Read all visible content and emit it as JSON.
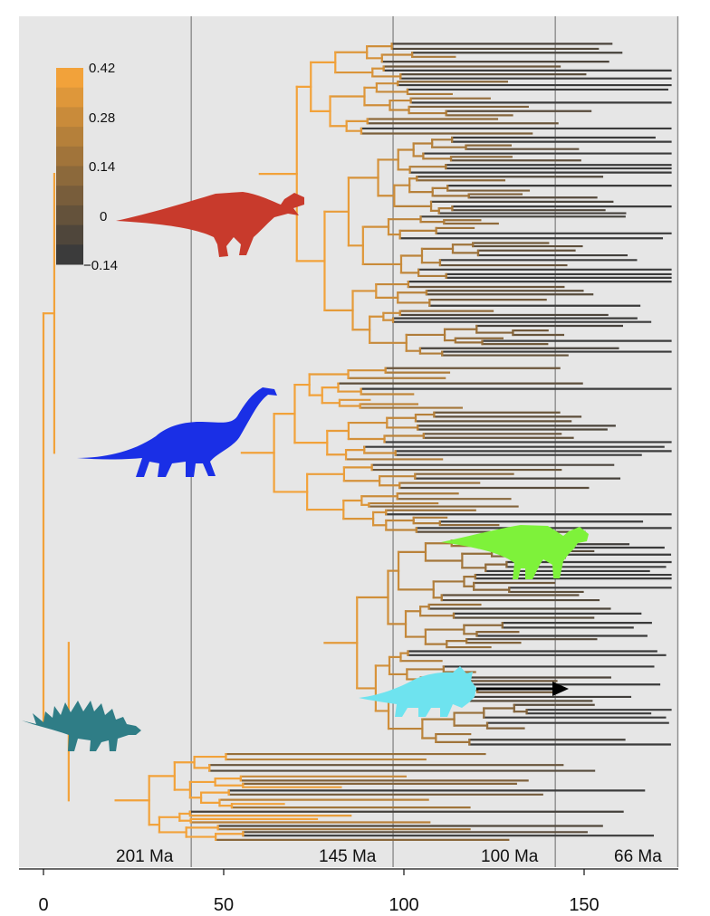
{
  "chart_data": {
    "type": "phylogenetic-tree",
    "x_axis": {
      "range": [
        -7,
        175
      ],
      "ticks": [
        0,
        50,
        100,
        150
      ]
    },
    "time_boundaries": [
      {
        "x": 41,
        "label": "201 Ma"
      },
      {
        "x": 97,
        "label": "145 Ma"
      },
      {
        "x": 142,
        "label": "100 Ma"
      },
      {
        "x": 176,
        "label": "66 Ma"
      }
    ],
    "color_scale": {
      "min": -0.14,
      "max": 0.42,
      "low_color": "#3b3b3b",
      "high_color": "#f2a23a",
      "labels": [
        "0.42",
        "0.28",
        "0.14",
        "0",
        "−0.14"
      ],
      "label_values": [
        0.42,
        0.28,
        0.14,
        0,
        -0.14
      ]
    },
    "clades": [
      {
        "icon": "theropod-silhouette-icon",
        "color": "#c83a2c"
      },
      {
        "icon": "sauropod-silhouette-icon",
        "color": "#1a2fe6"
      },
      {
        "icon": "hadrosaur-silhouette-icon",
        "color": "#7ef23a"
      },
      {
        "icon": "ceratopsian-silhouette-icon",
        "color": "#6ee3ef"
      },
      {
        "icon": "stegosaur-silhouette-icon",
        "color": "#2f7d86"
      }
    ],
    "colors": {
      "panel_background": "#e6e6e6",
      "boundary_lines": "#8c8c8c",
      "arrow": "#000000"
    }
  }
}
